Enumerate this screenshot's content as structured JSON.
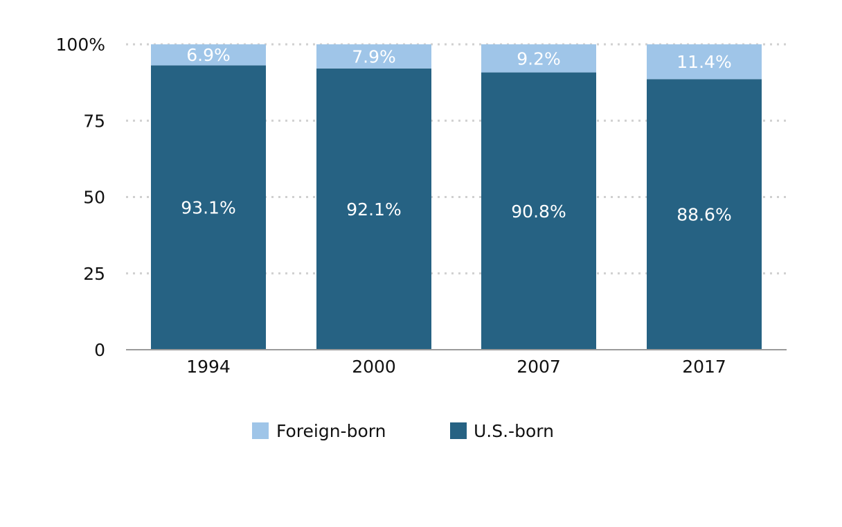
{
  "chart_data": {
    "type": "bar",
    "stacked": true,
    "categories": [
      "1994",
      "2000",
      "2007",
      "2017"
    ],
    "series": [
      {
        "name": "U.S.-born",
        "color": "#266283",
        "values": [
          93.1,
          92.1,
          90.8,
          88.6
        ],
        "labels": [
          "93.1%",
          "92.1%",
          "90.8%",
          "88.6%"
        ]
      },
      {
        "name": "Foreign-born",
        "color": "#9fc5e8",
        "values": [
          6.9,
          7.9,
          9.2,
          11.4
        ],
        "labels": [
          "6.9%",
          "7.9%",
          "9.2%",
          "11.4%"
        ]
      }
    ],
    "y_ticks": [
      0,
      25,
      50,
      75,
      100
    ],
    "y_tick_labels": [
      "0",
      "25",
      "50",
      "75",
      "100%"
    ],
    "ylim": [
      0,
      100
    ],
    "grid": true,
    "legend": {
      "position": "bottom",
      "entries": [
        "Foreign-born",
        "U.S.-born"
      ]
    }
  }
}
